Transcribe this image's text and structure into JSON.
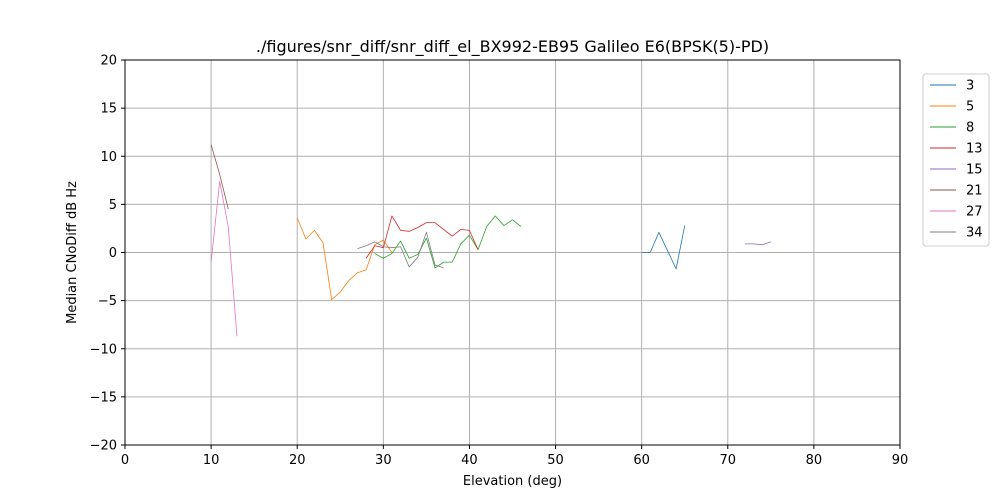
{
  "chart_data": {
    "type": "line",
    "title": "./figures/snr_diff/snr_diff_el_BX992-EB95 Galileo  E6(BPSK(5)-PD)",
    "xlabel": "Elevation (deg)",
    "ylabel": "Median CNoDiff dB Hz",
    "xlim": [
      0,
      90
    ],
    "ylim": [
      -20,
      20
    ],
    "x_ticks": [
      0,
      10,
      20,
      30,
      40,
      50,
      60,
      70,
      80,
      90
    ],
    "y_ticks": [
      -20,
      -15,
      -10,
      -5,
      0,
      5,
      10,
      15,
      20
    ],
    "x_tick_labels": [
      "0",
      "10",
      "20",
      "30",
      "40",
      "50",
      "60",
      "70",
      "80",
      "90"
    ],
    "y_tick_labels": [
      "−20",
      "−15",
      "−10",
      "−5",
      "0",
      "5",
      "10",
      "15",
      "20"
    ],
    "grid": true,
    "legend_position": "outside-right",
    "series": [
      {
        "name": "3",
        "color": "#1f77b4",
        "x": [
          60,
          61,
          62,
          63,
          64,
          65
        ],
        "y": [
          0.0,
          0.0,
          2.1,
          0.2,
          -1.7,
          2.8
        ]
      },
      {
        "name": "5",
        "color": "#ff7f0e",
        "x": [
          20,
          21,
          22,
          23,
          24,
          25,
          26,
          27,
          28,
          29,
          30,
          31
        ],
        "y": [
          3.6,
          1.4,
          2.3,
          1.0,
          -4.9,
          -4.1,
          -2.9,
          -2.1,
          -1.8,
          0.8,
          1.3,
          0.0
        ]
      },
      {
        "name": "8",
        "color": "#2ca02c",
        "x": [
          29,
          30,
          31,
          32,
          33,
          34,
          35,
          36,
          37,
          38,
          39,
          40,
          41,
          42,
          43,
          44,
          45,
          46
        ],
        "y": [
          -0.1,
          -0.6,
          -0.1,
          1.2,
          -0.6,
          -0.2,
          1.5,
          -1.6,
          -1.0,
          -1.0,
          0.9,
          1.8,
          0.3,
          2.7,
          3.8,
          2.8,
          3.4,
          2.7
        ]
      },
      {
        "name": "13",
        "color": "#d62728",
        "x": [
          28,
          29,
          30,
          31,
          32,
          33,
          34,
          35,
          36,
          37,
          38,
          39,
          40,
          41
        ],
        "y": [
          -0.6,
          0.7,
          0.5,
          3.8,
          2.3,
          2.2,
          2.6,
          3.1,
          3.1,
          2.4,
          1.7,
          2.4,
          2.3,
          0.3
        ]
      },
      {
        "name": "15",
        "color": "#9467bd",
        "x": [
          72,
          73,
          74,
          75
        ],
        "y": [
          0.9,
          0.9,
          0.8,
          1.1
        ]
      },
      {
        "name": "21",
        "color": "#8c564b",
        "x": [
          10,
          11,
          12
        ],
        "y": [
          11.2,
          8.1,
          4.5
        ]
      },
      {
        "name": "27",
        "color": "#e377c2",
        "x": [
          10,
          11,
          12,
          13
        ],
        "y": [
          -1.0,
          7.4,
          2.6,
          -8.7
        ]
      },
      {
        "name": "34",
        "color": "#7f7f7f",
        "x": [
          27,
          28,
          29,
          30,
          31,
          32,
          33,
          34,
          35,
          36,
          37
        ],
        "y": [
          0.4,
          0.7,
          1.1,
          0.6,
          0.5,
          0.6,
          -1.5,
          -0.5,
          2.1,
          -1.3,
          -1.6
        ]
      }
    ]
  }
}
